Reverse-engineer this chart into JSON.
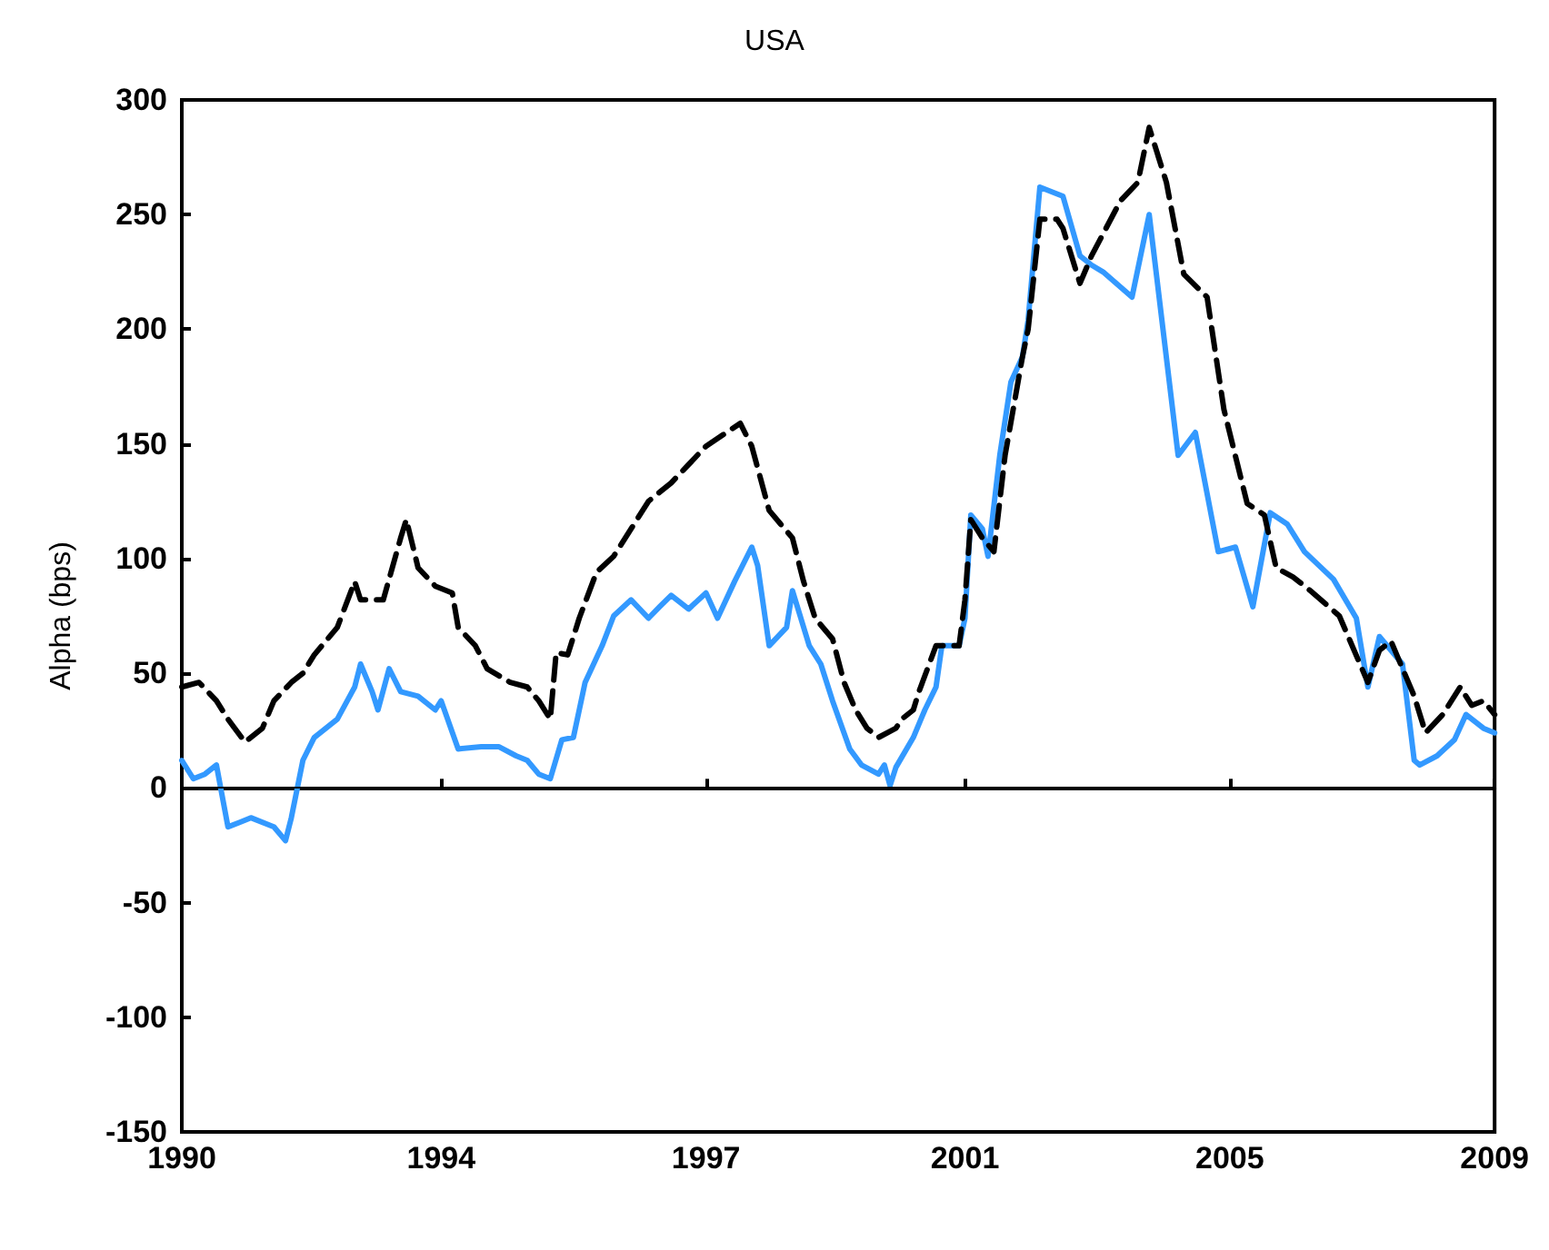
{
  "chart_data": {
    "type": "line",
    "title": "USA",
    "ylabel": "Alpha (bps)",
    "xlim": [
      "1990-04",
      "2009-04"
    ],
    "ylim": [
      -150,
      300
    ],
    "xticks": [
      {
        "value": "1990-04",
        "label": "1990"
      },
      {
        "value": "1994-01",
        "label": "1994"
      },
      {
        "value": "1997-11",
        "label": "1997"
      },
      {
        "value": "2001-08",
        "label": "2001"
      },
      {
        "value": "2005-06",
        "label": "2005"
      },
      {
        "value": "2009-04",
        "label": "2009"
      }
    ],
    "yticks": [
      -150,
      -100,
      -50,
      0,
      50,
      100,
      150,
      200,
      250,
      300
    ],
    "grid": false,
    "marker": "none",
    "ref_lines": [
      {
        "axis": "y",
        "value": 0,
        "color": "#000000",
        "line_style": "solid"
      }
    ],
    "series": [
      {
        "color": "#3399ff",
        "line_style": "solid",
        "x": [
          "1990-04",
          "1990-06",
          "1990-08",
          "1990-10",
          "1990-12",
          "1991-02",
          "1991-04",
          "1991-08",
          "1991-10",
          "1991-11",
          "1992-01",
          "1992-03",
          "1992-07",
          "1992-10",
          "1992-11",
          "1993-01",
          "1993-02",
          "1993-04",
          "1993-06",
          "1993-09",
          "1993-12",
          "1994-01",
          "1994-04",
          "1994-08",
          "1994-11",
          "1995-02",
          "1995-04",
          "1995-06",
          "1995-08",
          "1995-10",
          "1995-12",
          "1996-02",
          "1996-05",
          "1996-07",
          "1996-10",
          "1997-01",
          "1997-03",
          "1997-05",
          "1997-08",
          "1997-11",
          "1998-01",
          "1998-04",
          "1998-07",
          "1998-08",
          "1998-10",
          "1999-01",
          "1999-02",
          "1999-05",
          "1999-07",
          "1999-09",
          "1999-12",
          "2000-02",
          "2000-05",
          "2000-06",
          "2000-07",
          "2000-08",
          "2000-11",
          "2001-01",
          "2001-03",
          "2001-04",
          "2001-07",
          "2001-08",
          "2001-09",
          "2001-11",
          "2001-12",
          "2002-02",
          "2002-04",
          "2002-06",
          "2002-07",
          "2002-09",
          "2003-01",
          "2003-04",
          "2003-06",
          "2003-08",
          "2004-01",
          "2004-04",
          "2004-09",
          "2004-12",
          "2005-04",
          "2005-07",
          "2005-10",
          "2006-01",
          "2006-04",
          "2006-07",
          "2006-12",
          "2007-04",
          "2007-06",
          "2007-08",
          "2007-12",
          "2008-02",
          "2008-03",
          "2008-06",
          "2008-09",
          "2008-11",
          "2009-02",
          "2009-04"
        ],
        "values": [
          12,
          4,
          6,
          10,
          -17,
          -15,
          -13,
          -17,
          -23,
          -13,
          12,
          22,
          30,
          44,
          54,
          42,
          34,
          52,
          42,
          40,
          34,
          38,
          17,
          18,
          18,
          14,
          12,
          6,
          4,
          21,
          22,
          46,
          62,
          75,
          82,
          74,
          79,
          84,
          78,
          85,
          74,
          90,
          105,
          97,
          62,
          70,
          86,
          62,
          54,
          38,
          17,
          10,
          6,
          10,
          1,
          9,
          22,
          34,
          44,
          62,
          62,
          74,
          119,
          113,
          101,
          145,
          177,
          188,
          204,
          262,
          258,
          232,
          228,
          225,
          214,
          250,
          145,
          155,
          103,
          105,
          79,
          120,
          115,
          103,
          91,
          74,
          44,
          66,
          54,
          12,
          10,
          14,
          21,
          32,
          26,
          24
        ]
      },
      {
        "color": "#000000",
        "line_style": "dashed",
        "x": [
          "1990-04",
          "1990-07",
          "1990-10",
          "1990-12",
          "1991-03",
          "1991-06",
          "1991-08",
          "1991-11",
          "1992-01",
          "1992-03",
          "1992-07",
          "1992-10",
          "1992-11",
          "1993-03",
          "1993-06",
          "1993-07",
          "1993-09",
          "1993-12",
          "1994-03",
          "1994-04",
          "1994-07",
          "1994-09",
          "1995-01",
          "1995-04",
          "1995-06",
          "1995-08",
          "1995-09",
          "1995-11",
          "1996-01",
          "1996-04",
          "1996-07",
          "1996-10",
          "1997-01",
          "1997-05",
          "1997-08",
          "1997-11",
          "1998-05",
          "1998-07",
          "1998-10",
          "1998-12",
          "1999-02",
          "1999-04",
          "1999-06",
          "1999-09",
          "1999-11",
          "2000-01",
          "2000-03",
          "2000-05",
          "2000-08",
          "2000-09",
          "2000-11",
          "2000-12",
          "2001-03",
          "2001-07",
          "2001-08",
          "2001-09",
          "2001-11",
          "2002-01",
          "2002-03",
          "2002-06",
          "2002-07",
          "2002-09",
          "2002-12",
          "2003-01",
          "2003-04",
          "2003-06",
          "2003-11",
          "2004-02",
          "2004-04",
          "2004-07",
          "2004-10",
          "2005-02",
          "2005-05",
          "2005-09",
          "2005-12",
          "2006-02",
          "2006-05",
          "2006-08",
          "2007-01",
          "2007-06",
          "2007-08",
          "2007-10",
          "2008-02",
          "2008-04",
          "2008-07",
          "2008-10",
          "2008-12",
          "2009-02",
          "2009-04"
        ],
        "values": [
          44,
          46,
          38,
          30,
          20,
          26,
          38,
          46,
          50,
          58,
          70,
          90,
          82,
          82,
          109,
          117,
          96,
          88,
          85,
          70,
          62,
          52,
          46,
          44,
          38,
          30,
          59,
          58,
          74,
          94,
          101,
          113,
          125,
          133,
          141,
          149,
          159,
          149,
          121,
          115,
          109,
          90,
          74,
          65,
          46,
          34,
          26,
          22,
          26,
          30,
          34,
          42,
          62,
          62,
          82,
          117,
          109,
          103,
          145,
          188,
          200,
          248,
          248,
          244,
          220,
          232,
          256,
          264,
          288,
          264,
          224,
          214,
          165,
          124,
          119,
          96,
          92,
          86,
          75,
          46,
          60,
          64,
          40,
          24,
          32,
          44,
          36,
          38,
          32
        ]
      }
    ]
  }
}
